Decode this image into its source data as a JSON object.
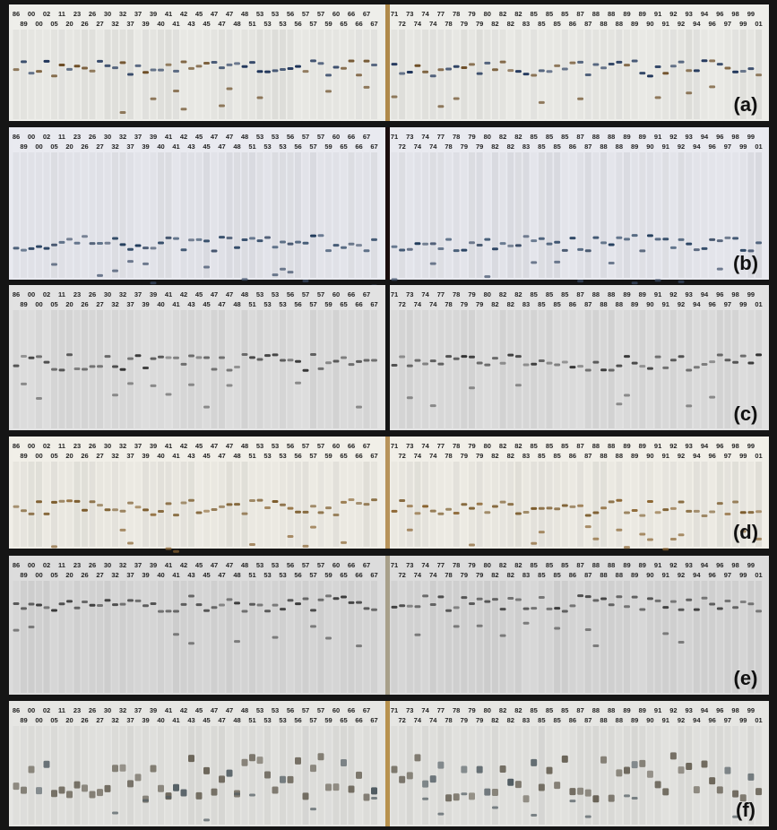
{
  "panels": [
    {
      "label": "(a)",
      "left_top": [
        "86",
        "00",
        "02",
        "11",
        "23",
        "26",
        "30",
        "32",
        "37",
        "39",
        "41",
        "42",
        "45",
        "47",
        "47",
        "48",
        "53",
        "53",
        "56",
        "57",
        "57",
        "60",
        "66",
        "67"
      ],
      "left_bottom": [
        "89",
        "00",
        "05",
        "20",
        "26",
        "27",
        "32",
        "37",
        "39",
        "40",
        "41",
        "43",
        "45",
        "47",
        "48",
        "51",
        "53",
        "53",
        "56",
        "57",
        "59",
        "65",
        "66",
        "67"
      ],
      "right_top": [
        "71",
        "73",
        "74",
        "77",
        "78",
        "79",
        "80",
        "82",
        "82",
        "85",
        "85",
        "85",
        "87",
        "88",
        "88",
        "89",
        "89",
        "91",
        "92",
        "93",
        "94",
        "96",
        "98",
        "99"
      ],
      "right_bottom": [
        "72",
        "74",
        "74",
        "78",
        "79",
        "79",
        "82",
        "82",
        "83",
        "85",
        "85",
        "86",
        "87",
        "88",
        "88",
        "89",
        "90",
        "91",
        "92",
        "94",
        "96",
        "97",
        "99",
        "01"
      ]
    },
    {
      "label": "(b)",
      "left_top": [
        "86",
        "00",
        "02",
        "11",
        "23",
        "26",
        "30",
        "32",
        "37",
        "39",
        "41",
        "42",
        "45",
        "47",
        "47",
        "48",
        "53",
        "53",
        "56",
        "57",
        "57",
        "60",
        "66",
        "67"
      ],
      "left_bottom": [
        "89",
        "00",
        "05",
        "20",
        "26",
        "27",
        "32",
        "37",
        "39",
        "40",
        "41",
        "43",
        "45",
        "47",
        "48",
        "51",
        "53",
        "53",
        "56",
        "57",
        "59",
        "65",
        "66",
        "67"
      ],
      "right_top": [
        "71",
        "73",
        "74",
        "77",
        "78",
        "79",
        "80",
        "82",
        "82",
        "85",
        "85",
        "85",
        "87",
        "88",
        "88",
        "89",
        "89",
        "91",
        "92",
        "93",
        "94",
        "96",
        "98",
        "99"
      ],
      "right_bottom": [
        "72",
        "74",
        "74",
        "78",
        "79",
        "79",
        "82",
        "82",
        "83",
        "85",
        "85",
        "86",
        "87",
        "88",
        "88",
        "89",
        "90",
        "91",
        "92",
        "94",
        "96",
        "97",
        "99",
        "01"
      ]
    },
    {
      "label": "(c)",
      "left_top": [
        "86",
        "00",
        "02",
        "11",
        "23",
        "26",
        "30",
        "32",
        "37",
        "39",
        "41",
        "42",
        "45",
        "47",
        "47",
        "48",
        "53",
        "53",
        "56",
        "57",
        "57",
        "60",
        "66",
        "67"
      ],
      "left_bottom": [
        "89",
        "00",
        "05",
        "20",
        "26",
        "27",
        "32",
        "37",
        "39",
        "40",
        "41",
        "43",
        "45",
        "47",
        "48",
        "51",
        "53",
        "53",
        "56",
        "57",
        "59",
        "65",
        "66",
        "67"
      ],
      "right_top": [
        "71",
        "73",
        "74",
        "77",
        "78",
        "79",
        "80",
        "82",
        "82",
        "85",
        "85",
        "85",
        "87",
        "88",
        "88",
        "89",
        "89",
        "91",
        "92",
        "93",
        "94",
        "96",
        "98",
        "99"
      ],
      "right_bottom": [
        "72",
        "74",
        "74",
        "78",
        "79",
        "79",
        "82",
        "82",
        "83",
        "85",
        "85",
        "86",
        "87",
        "88",
        "88",
        "89",
        "90",
        "91",
        "92",
        "94",
        "96",
        "97",
        "99",
        "01"
      ]
    },
    {
      "label": "(d)",
      "left_top": [
        "86",
        "00",
        "02",
        "11",
        "23",
        "26",
        "30",
        "32",
        "37",
        "39",
        "41",
        "42",
        "45",
        "47",
        "47",
        "48",
        "53",
        "53",
        "56",
        "57",
        "57",
        "60",
        "66",
        "67"
      ],
      "left_bottom": [
        "89",
        "00",
        "05",
        "20",
        "26",
        "27",
        "32",
        "37",
        "39",
        "40",
        "41",
        "43",
        "45",
        "47",
        "48",
        "51",
        "53",
        "53",
        "56",
        "57",
        "59",
        "65",
        "66",
        "67"
      ],
      "right_top": [
        "71",
        "73",
        "74",
        "77",
        "78",
        "79",
        "80",
        "82",
        "82",
        "85",
        "85",
        "85",
        "87",
        "88",
        "88",
        "89",
        "89",
        "91",
        "92",
        "93",
        "94",
        "96",
        "98",
        "99"
      ],
      "right_bottom": [
        "72",
        "74",
        "74",
        "78",
        "79",
        "79",
        "82",
        "82",
        "83",
        "85",
        "85",
        "86",
        "87",
        "88",
        "88",
        "89",
        "90",
        "91",
        "92",
        "94",
        "96",
        "97",
        "99",
        "01"
      ]
    },
    {
      "label": "(e)",
      "left_top": [
        "86",
        "00",
        "02",
        "11",
        "23",
        "26",
        "30",
        "32",
        "37",
        "39",
        "41",
        "42",
        "45",
        "47",
        "47",
        "48",
        "53",
        "53",
        "56",
        "57",
        "57",
        "60",
        "66",
        "67"
      ],
      "left_bottom": [
        "89",
        "00",
        "05",
        "20",
        "26",
        "27",
        "32",
        "37",
        "39",
        "40",
        "41",
        "43",
        "45",
        "47",
        "48",
        "51",
        "53",
        "53",
        "56",
        "57",
        "59",
        "65",
        "66",
        "67"
      ],
      "right_top": [
        "71",
        "73",
        "74",
        "77",
        "78",
        "79",
        "80",
        "82",
        "82",
        "85",
        "85",
        "85",
        "87",
        "88",
        "88",
        "89",
        "89",
        "91",
        "92",
        "93",
        "94",
        "96",
        "98",
        "99"
      ],
      "right_bottom": [
        "72",
        "74",
        "74",
        "78",
        "79",
        "79",
        "82",
        "82",
        "83",
        "85",
        "85",
        "86",
        "87",
        "88",
        "88",
        "89",
        "90",
        "91",
        "92",
        "94",
        "96",
        "97",
        "99",
        "01"
      ]
    },
    {
      "label": "(f)",
      "left_top": [
        "86",
        "00",
        "02",
        "11",
        "23",
        "26",
        "30",
        "32",
        "37",
        "39",
        "41",
        "42",
        "45",
        "47",
        "47",
        "48",
        "53",
        "53",
        "56",
        "57",
        "57",
        "60",
        "66",
        "67"
      ],
      "left_bottom": [
        "89",
        "00",
        "05",
        "20",
        "26",
        "27",
        "32",
        "37",
        "39",
        "40",
        "41",
        "43",
        "45",
        "47",
        "48",
        "51",
        "53",
        "53",
        "56",
        "57",
        "59",
        "65",
        "66",
        "67"
      ],
      "right_top": [
        "71",
        "73",
        "74",
        "77",
        "78",
        "79",
        "80",
        "82",
        "82",
        "85",
        "85",
        "85",
        "87",
        "88",
        "88",
        "89",
        "89",
        "91",
        "92",
        "93",
        "94",
        "96",
        "98",
        "99"
      ],
      "right_bottom": [
        "72",
        "74",
        "74",
        "78",
        "79",
        "79",
        "82",
        "82",
        "83",
        "85",
        "85",
        "86",
        "87",
        "88",
        "88",
        "89",
        "90",
        "91",
        "92",
        "94",
        "96",
        "97",
        "99",
        "01"
      ]
    }
  ]
}
